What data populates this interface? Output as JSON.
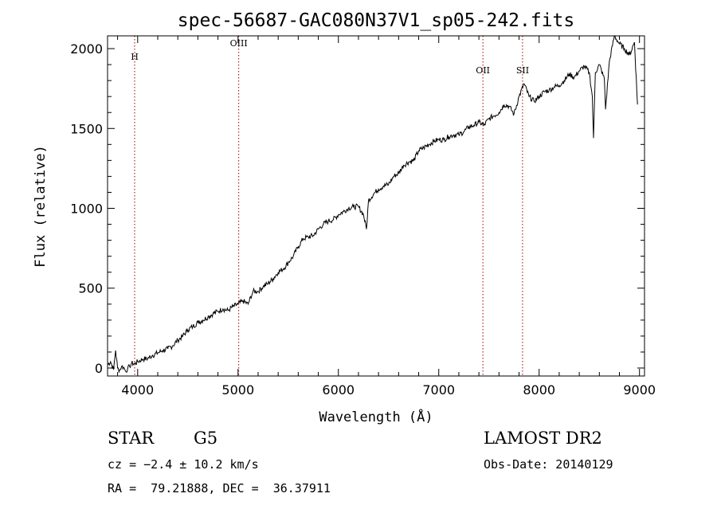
{
  "chart_data": {
    "type": "line",
    "title": "spec-56687-GAC080N37V1_sp05-242.fits",
    "xlabel": "Wavelength (Å)",
    "ylabel": "Flux (relative)",
    "xlim": [
      3700,
      9050
    ],
    "ylim": [
      -50,
      2080
    ],
    "x_ticks": [
      "4000",
      "5000",
      "6000",
      "7000",
      "8000",
      "9000"
    ],
    "y_ticks": [
      "0",
      "500",
      "1000",
      "1500",
      "2000"
    ],
    "x_tick_values": [
      4000,
      5000,
      6000,
      7000,
      8000,
      9000
    ],
    "y_tick_values": [
      0,
      500,
      1000,
      1500,
      2000
    ],
    "grid": false,
    "line_markers": [
      {
        "label": "H",
        "x": 3970,
        "label_y": 1930
      },
      {
        "label": "OIII",
        "x": 5007,
        "label_y": 2015
      },
      {
        "label": "OII",
        "x": 7440,
        "label_y": 1845
      },
      {
        "label": "SII",
        "x": 7835,
        "label_y": 1845
      }
    ],
    "series": [
      {
        "x": [
          3700,
          3730,
          3760,
          3780,
          3800,
          3820,
          3840,
          3860,
          3880,
          3900,
          3920,
          3940,
          3970,
          4000,
          4050,
          4100,
          4150,
          4200,
          4250,
          4300,
          4350,
          4400,
          4450,
          4500,
          4550,
          4600,
          4650,
          4700,
          4750,
          4800,
          4850,
          4900,
          4950,
          5000,
          5050,
          5100,
          5150,
          5200,
          5250,
          5300,
          5350,
          5400,
          5450,
          5500,
          5550,
          5600,
          5650,
          5700,
          5750,
          5800,
          5850,
          5900,
          5950,
          6000,
          6050,
          6100,
          6150,
          6200,
          6250,
          6280,
          6300,
          6350,
          6400,
          6450,
          6500,
          6550,
          6600,
          6650,
          6700,
          6750,
          6800,
          6850,
          6900,
          6950,
          7000,
          7050,
          7100,
          7150,
          7200,
          7250,
          7300,
          7350,
          7400,
          7450,
          7500,
          7550,
          7600,
          7650,
          7700,
          7750,
          7800,
          7850,
          7900,
          7950,
          8000,
          8050,
          8100,
          8150,
          8200,
          8250,
          8300,
          8350,
          8400,
          8450,
          8500,
          8530,
          8542,
          8560,
          8600,
          8650,
          8662,
          8700,
          8750,
          8800,
          8850,
          8900,
          8950,
          8980
        ],
        "values": [
          20,
          40,
          -10,
          110,
          0,
          -15,
          10,
          5,
          -20,
          -5,
          10,
          30,
          25,
          40,
          55,
          60,
          80,
          95,
          110,
          120,
          140,
          175,
          200,
          240,
          260,
          285,
          300,
          320,
          340,
          355,
          370,
          360,
          385,
          400,
          420,
          400,
          480,
          480,
          510,
          530,
          560,
          600,
          620,
          660,
          700,
          760,
          810,
          820,
          830,
          870,
          900,
          920,
          930,
          960,
          980,
          1000,
          1010,
          1010,
          960,
          870,
          1050,
          1090,
          1120,
          1140,
          1150,
          1200,
          1220,
          1270,
          1290,
          1300,
          1360,
          1380,
          1400,
          1420,
          1430,
          1430,
          1450,
          1460,
          1460,
          1480,
          1510,
          1520,
          1540,
          1520,
          1560,
          1580,
          1600,
          1650,
          1640,
          1590,
          1700,
          1780,
          1700,
          1670,
          1700,
          1730,
          1740,
          1760,
          1770,
          1800,
          1840,
          1820,
          1860,
          1890,
          1850,
          1700,
          1440,
          1850,
          1900,
          1810,
          1620,
          1920,
          2080,
          2030,
          2000,
          1960,
          2040,
          1650
        ]
      }
    ]
  },
  "info": {
    "object_class": "STAR",
    "subclass": "G5",
    "survey": "LAMOST DR2",
    "cz": "cz = −2.4 ± 10.2 km/s",
    "obs_date": "Obs-Date: 20140129",
    "coords": "RA =  79.21888, DEC =  36.37911"
  }
}
